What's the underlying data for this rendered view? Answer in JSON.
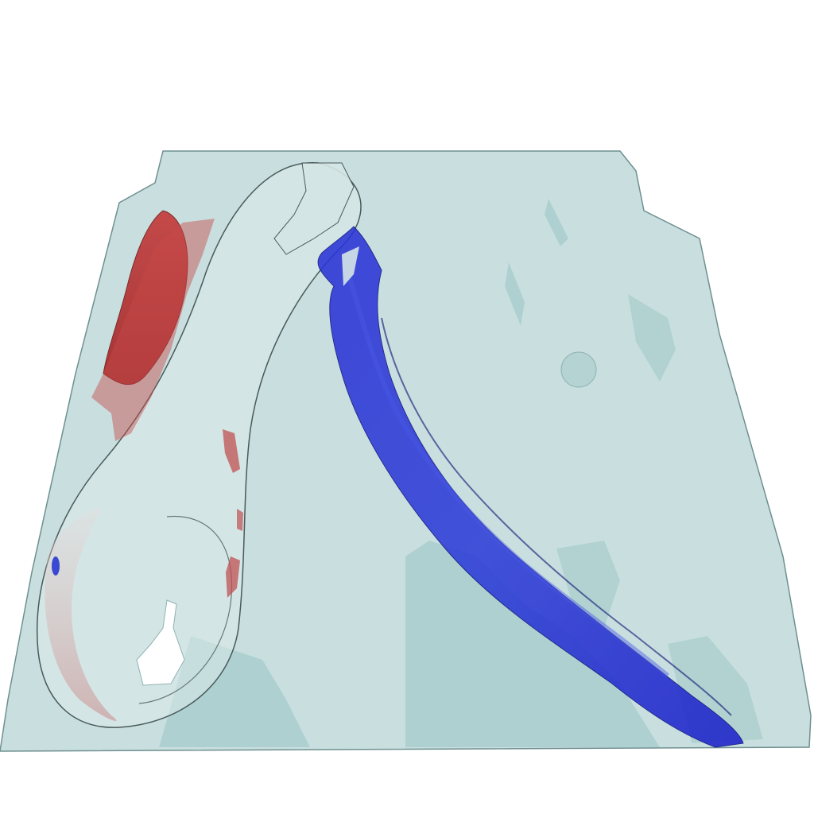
{
  "scene": {
    "kind": "3d-isosurface-render",
    "background_color": "#ffffff",
    "slab_color": "#c9dfdf",
    "slab_edge_color": "#6f8f90",
    "shadow_color": "#a8cccc",
    "negative_structure_color": "#b22222",
    "positive_structure_color": "#1f2fd0",
    "cavity_color": "#ffffff"
  }
}
